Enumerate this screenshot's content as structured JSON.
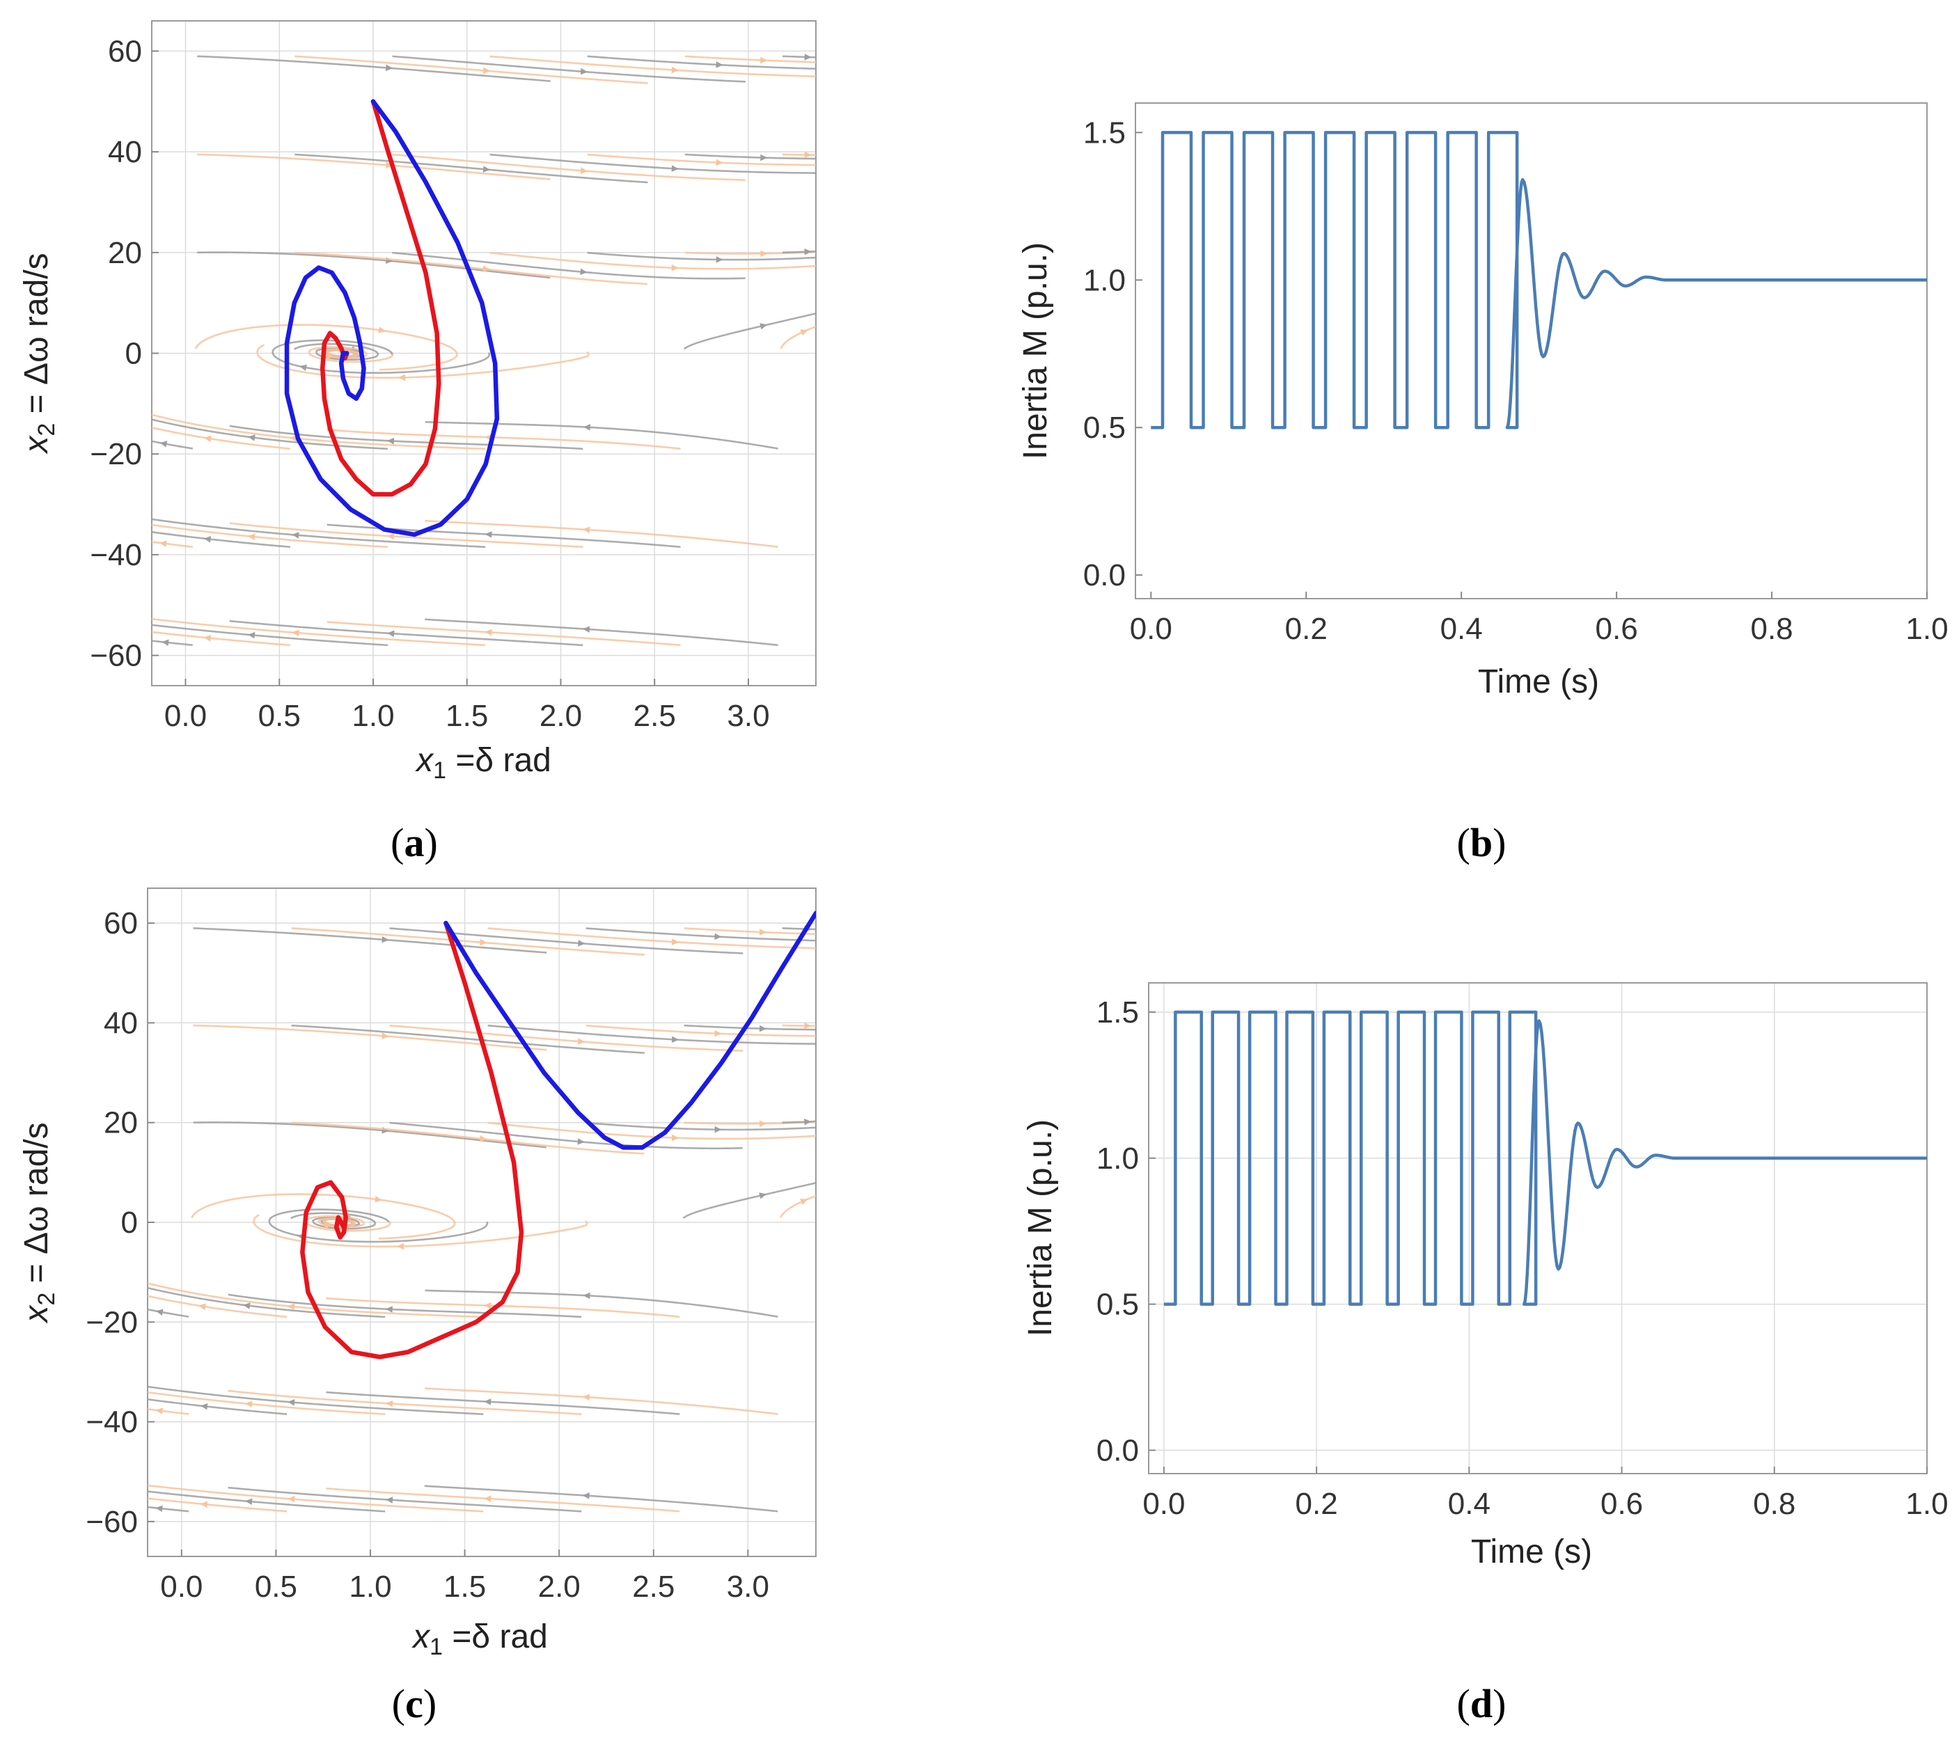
{
  "chart_data": [
    {
      "id": "a",
      "panel_label": "a",
      "type": "streamplot",
      "title": "",
      "xlabel": {
        "main": "x",
        "sub": "1",
        "rest": " =δ rad"
      },
      "ylabel": {
        "main": "x",
        "sub": "2",
        "rest": " = Δω rad/s"
      },
      "xlim": [
        -0.18,
        3.36
      ],
      "ylim": [
        -66,
        66
      ],
      "xticks": [
        0.0,
        0.5,
        1.0,
        1.5,
        2.0,
        2.5,
        3.0
      ],
      "xtick_labels": [
        "0.0",
        "0.5",
        "1.0",
        "1.5",
        "2.0",
        "2.5",
        "3.0"
      ],
      "yticks": [
        -60,
        -40,
        -20,
        0,
        20,
        40,
        60
      ],
      "ytick_labels": [
        "−60",
        "−40",
        "−20",
        "0",
        "20",
        "40",
        "60"
      ],
      "grid": true,
      "field": {
        "equilibria": [
          [
            0.86,
            0
          ],
          [
            2.28,
            0
          ]
        ],
        "rotation": "clockwise",
        "colors": [
          "#9e9e9e",
          "#f9c39a"
        ]
      },
      "series": [
        {
          "name": "red trajectory",
          "color": "#e8141c",
          "x": [
            1.0,
            1.08,
            1.18,
            1.28,
            1.34,
            1.35,
            1.33,
            1.28,
            1.2,
            1.1,
            1.0,
            0.91,
            0.83,
            0.77,
            0.74,
            0.73,
            0.74,
            0.77,
            0.8,
            0.83,
            0.85,
            0.86
          ],
          "y": [
            50,
            40,
            28,
            16,
            4,
            -6,
            -15,
            -22,
            -26,
            -28,
            -28,
            -25,
            -21,
            -15,
            -9,
            -3,
            2,
            4,
            3,
            1,
            -1,
            0
          ]
        },
        {
          "name": "blue trajectory",
          "color": "#1a1ae6",
          "x": [
            1.0,
            1.12,
            1.28,
            1.45,
            1.58,
            1.65,
            1.66,
            1.6,
            1.5,
            1.36,
            1.22,
            1.06,
            0.88,
            0.72,
            0.6,
            0.54,
            0.54,
            0.58,
            0.64,
            0.71,
            0.78,
            0.85,
            0.9,
            0.93,
            0.95,
            0.94,
            0.91,
            0.87,
            0.84,
            0.83,
            0.84,
            0.86
          ],
          "y": [
            50,
            44,
            34,
            22,
            10,
            -2,
            -13,
            -22,
            -29,
            -34,
            -36,
            -35,
            -31,
            -25,
            -17,
            -8,
            2,
            10,
            15,
            17,
            16,
            12,
            7,
            2,
            -3,
            -7,
            -9,
            -8,
            -5,
            -2,
            0,
            0
          ]
        }
      ]
    },
    {
      "id": "b",
      "panel_label": "b",
      "type": "line",
      "title": "",
      "xlabel": "Time (s)",
      "ylabel": "Inertia M (p.u.)",
      "xlim": [
        -0.02,
        1.0
      ],
      "ylim": [
        -0.08,
        1.6
      ],
      "xticks": [
        0.0,
        0.2,
        0.4,
        0.6,
        0.8,
        1.0
      ],
      "xtick_labels": [
        "0.0",
        "0.2",
        "0.4",
        "0.6",
        "0.8",
        "1.0"
      ],
      "yticks": [
        0.0,
        0.5,
        1.0,
        1.5
      ],
      "ytick_labels": [
        "0.0",
        "0.5",
        "1.0",
        "1.5"
      ],
      "grid": false,
      "series": [
        {
          "name": "Inertia M",
          "color": "#4a7db5",
          "square_wave": {
            "start": 0.0,
            "first_rise": 0.015,
            "period": 0.0525,
            "high_fraction": 0.7,
            "cycles": 9,
            "low": 0.5,
            "high": 1.5
          },
          "oscillation": {
            "start": 0.467,
            "period": 0.053,
            "peaks": [
              1.34,
              0.74,
              1.09,
              0.94,
              1.03,
              0.98,
              1.01,
              1.0
            ],
            "settle": 1.0,
            "end": 1.0
          }
        }
      ]
    },
    {
      "id": "c",
      "panel_label": "c",
      "type": "streamplot",
      "title": "",
      "xlabel": {
        "main": "x",
        "sub": "1",
        "rest": " =δ rad"
      },
      "ylabel": {
        "main": "x",
        "sub": "2",
        "rest": " = Δω rad/s"
      },
      "xlim": [
        -0.18,
        3.36
      ],
      "ylim": [
        -67,
        67
      ],
      "xticks": [
        0.0,
        0.5,
        1.0,
        1.5,
        2.0,
        2.5,
        3.0
      ],
      "xtick_labels": [
        "0.0",
        "0.5",
        "1.0",
        "1.5",
        "2.0",
        "2.5",
        "3.0"
      ],
      "yticks": [
        -60,
        -40,
        -20,
        0,
        20,
        40,
        60
      ],
      "ytick_labels": [
        "−60",
        "−40",
        "−20",
        "0",
        "20",
        "40",
        "60"
      ],
      "grid": true,
      "field": {
        "equilibria": [
          [
            0.86,
            0
          ],
          [
            2.28,
            0
          ]
        ],
        "rotation": "clockwise",
        "colors": [
          "#9e9e9e",
          "#f9c39a"
        ]
      },
      "series": [
        {
          "name": "red trajectory",
          "color": "#e8141c",
          "x": [
            1.4,
            1.5,
            1.64,
            1.76,
            1.8,
            1.78,
            1.7,
            1.56,
            1.38,
            1.2,
            1.05,
            0.9,
            0.76,
            0.67,
            0.64,
            0.66,
            0.72,
            0.79,
            0.85,
            0.87,
            0.86,
            0.84,
            0.82,
            0.83,
            0.86
          ],
          "y": [
            60,
            48,
            30,
            12,
            -2,
            -10,
            -16,
            -20,
            -23,
            -26,
            -27,
            -26,
            -21,
            -14,
            -6,
            2,
            7,
            8,
            5,
            1,
            -2,
            -3,
            -1,
            1,
            -1
          ]
        },
        {
          "name": "blue trajectory",
          "color": "#1a1ae6",
          "x": [
            1.4,
            1.56,
            1.74,
            1.92,
            2.1,
            2.24,
            2.34,
            2.44,
            2.56,
            2.7,
            2.86,
            3.02,
            3.18,
            3.36
          ],
          "y": [
            60,
            50,
            40,
            30,
            22,
            17,
            15,
            15,
            18,
            24,
            32,
            41,
            51,
            62
          ]
        }
      ]
    },
    {
      "id": "d",
      "panel_label": "d",
      "type": "line",
      "title": "",
      "xlabel": "Time (s)",
      "ylabel": "Inertia M (p.u.)",
      "xlim": [
        -0.02,
        1.0
      ],
      "ylim": [
        -0.08,
        1.6
      ],
      "xticks": [
        0.0,
        0.2,
        0.4,
        0.6,
        0.8,
        1.0
      ],
      "xtick_labels": [
        "0.0",
        "0.2",
        "0.4",
        "0.6",
        "0.8",
        "1.0"
      ],
      "yticks": [
        0.0,
        0.5,
        1.0,
        1.5
      ],
      "ytick_labels": [
        "0.0",
        "0.5",
        "1.0",
        "1.5"
      ],
      "grid": true,
      "series": [
        {
          "name": "Inertia M",
          "color": "#4a7db5",
          "square_wave": {
            "start": 0.0,
            "first_rise": 0.015,
            "period": 0.0487,
            "high_fraction": 0.7,
            "cycles": 10,
            "low": 0.5,
            "high": 1.5
          },
          "oscillation": {
            "start": 0.48,
            "period": 0.051,
            "peaks": [
              1.47,
              0.62,
              1.12,
              0.9,
              1.03,
              0.97,
              1.01,
              1.0
            ],
            "settle": 1.0,
            "end": 1.0
          }
        }
      ]
    }
  ]
}
